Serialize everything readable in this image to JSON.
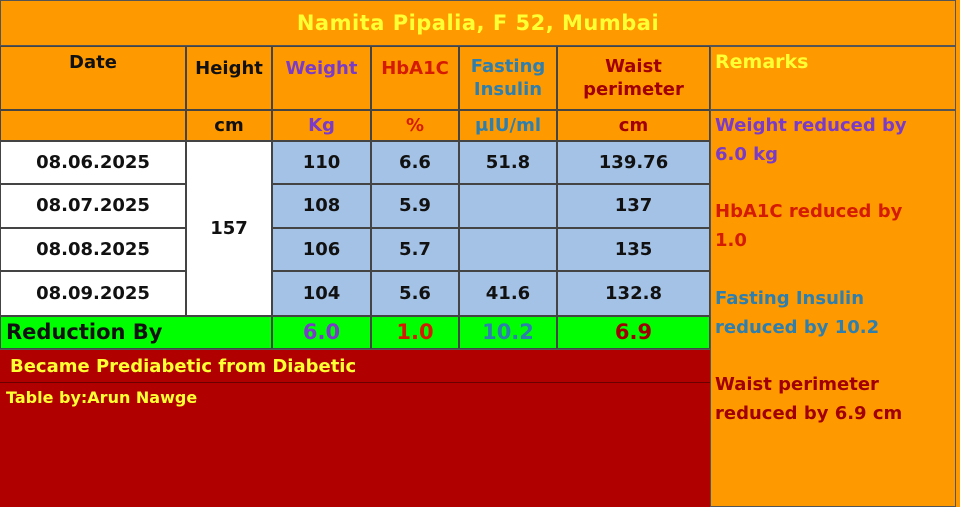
{
  "title": "Namita Pipalia, F 52, Mumbai",
  "headers": {
    "date": "Date",
    "height": "Height",
    "weight": "Weight",
    "hba1c": "HbA1C",
    "fasting_insulin": [
      "Fasting",
      "Insulin"
    ],
    "waist_perimeter": [
      "Waist",
      "perimeter"
    ],
    "remarks": "Remarks"
  },
  "units": {
    "height": "cm",
    "weight": "Kg",
    "hba1c": "%",
    "fasting_insulin": "μIU/ml",
    "waist_perimeter": "cm"
  },
  "height_value": "157",
  "rows": [
    {
      "date": "08.06.2025",
      "weight": "110",
      "hba1c": "6.6",
      "fasting_insulin": "51.8",
      "waist": "139.76"
    },
    {
      "date": "08.07.2025",
      "weight": "108",
      "hba1c": "5.9",
      "fasting_insulin": "",
      "waist": "137"
    },
    {
      "date": "08.08.2025",
      "weight": "106",
      "hba1c": "5.7",
      "fasting_insulin": "",
      "waist": "135"
    },
    {
      "date": "08.09.2025",
      "weight": "104",
      "hba1c": "5.6",
      "fasting_insulin": "41.6",
      "waist": "132.8"
    }
  ],
  "reduction": {
    "label": "Reduction By",
    "weight": "6.0",
    "hba1c": "1.0",
    "fasting_insulin": "10.2",
    "waist": "6.9"
  },
  "status_text": "Became Prediabetic from Diabetic",
  "credit": "Table by:Arun Nawge",
  "remarks": {
    "weight": [
      "Weight reduced by",
      "6.0 kg"
    ],
    "hba1c": [
      "HbA1C reduced by",
      "1.0"
    ],
    "fasting_insulin": [
      "Fasting Insulin",
      "reduced by 10.2"
    ],
    "waist": [
      "Waist perimeter",
      "reduced by 6.9 cm"
    ]
  },
  "colors": {
    "background": "#FF9900",
    "title_text": "#FFFF33",
    "weight": "#7A3CC8",
    "hba1c": "#D41B00",
    "fasting_insulin": "#2E7FAE",
    "waist": "#A00000",
    "data_fill": "#A4C2E6",
    "reduction_fill": "#00FF00",
    "panel_fill": "#B00000"
  }
}
